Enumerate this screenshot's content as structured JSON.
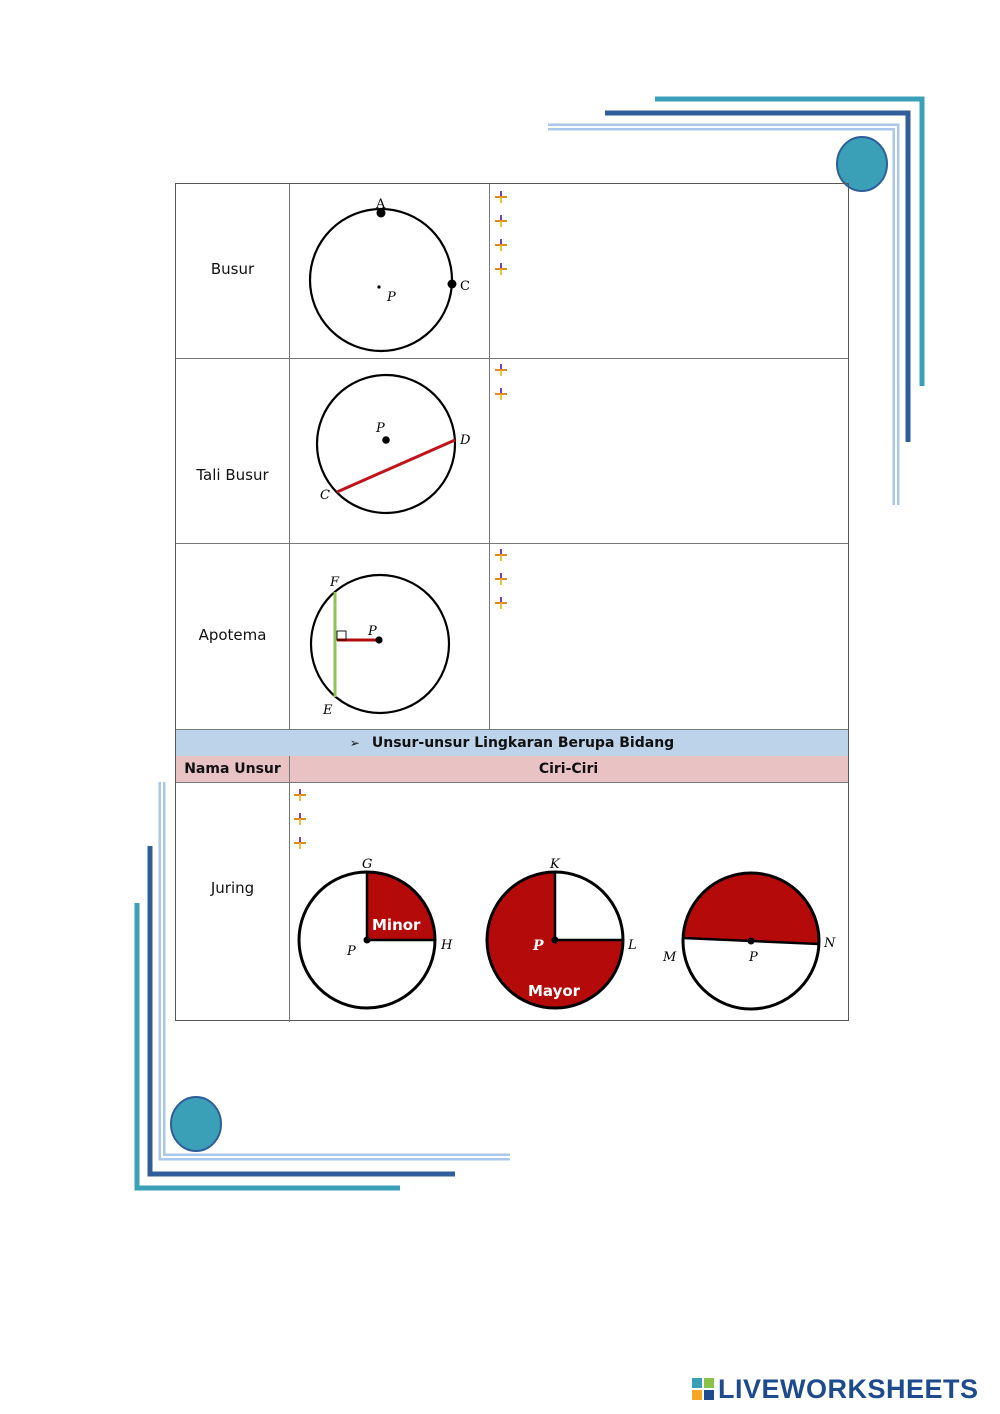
{
  "rows": [
    {
      "label": "Busur",
      "points": [
        "A",
        "C",
        "P"
      ]
    },
    {
      "label": "Tali Busur",
      "points": [
        "P",
        "D",
        "C"
      ]
    },
    {
      "label": "Apotema",
      "points": [
        "F",
        "P",
        "E"
      ]
    }
  ],
  "section_header": "Unsur-unsur Lingkaran Berupa Bidang",
  "section_bullet": "➢",
  "columns": {
    "name": "Nama Unsur",
    "traits": "Ciri-Ciri"
  },
  "juring": {
    "label": "Juring",
    "circle1": {
      "top": "G",
      "right": "H",
      "center": "P",
      "sector": "Minor"
    },
    "circle2": {
      "top": "K",
      "right": "L",
      "center": "P",
      "sector": "Mayor"
    },
    "circle3": {
      "left": "M",
      "right": "N",
      "center": "P"
    }
  },
  "colors": {
    "sector": "#b50a0a",
    "chord": "#c0141a",
    "apotema_line": "#8fc35a",
    "teal": "#3aa0b8",
    "navy": "#2f5e9a"
  },
  "logo": {
    "text": "LIVEWORKSHEETS"
  }
}
